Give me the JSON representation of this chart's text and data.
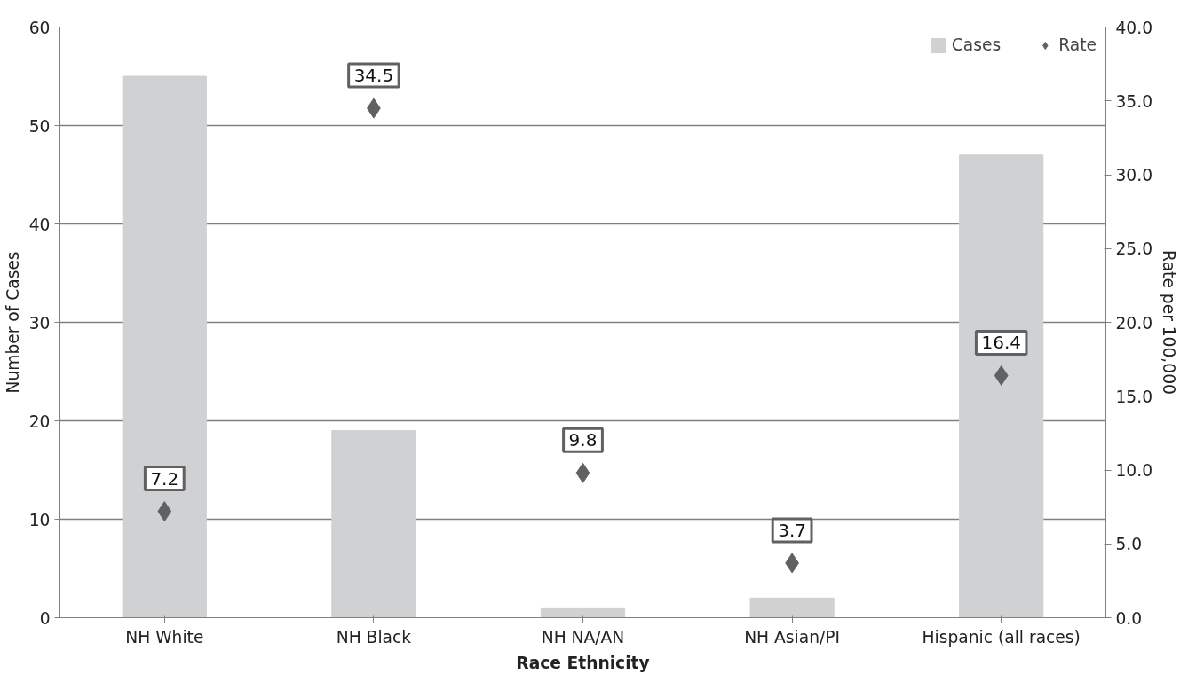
{
  "chart_data": {
    "type": "bar",
    "xlabel": "Race Ethnicity",
    "ylabel": "Number of Cases",
    "y2label": "Rate per 100,000",
    "categories": [
      "NH White",
      "NH Black",
      "NH NA/AN",
      "NH Asian/PI",
      "Hispanic (all races)"
    ],
    "series": [
      {
        "name": "Cases",
        "color": "#cfd1d3",
        "values": [
          55,
          19,
          1,
          2,
          47
        ]
      },
      {
        "name": "Rate",
        "type": "scatter",
        "axis": "y2",
        "color": "#5f6163",
        "marker": "diamond",
        "data_labels": true,
        "values": [
          7.2,
          34.5,
          9.8,
          3.7,
          16.4
        ]
      }
    ],
    "ylim": [
      0,
      60
    ],
    "yticks": [
      0,
      10,
      20,
      30,
      40,
      50,
      60
    ],
    "y2lim": [
      0,
      40
    ],
    "y2ticks": [
      {
        "value": 0,
        "label": "0.0"
      },
      {
        "value": 5,
        "label": "5.0"
      },
      {
        "value": 10,
        "label": "10.0"
      },
      {
        "value": 15,
        "label": "15.0"
      },
      {
        "value": 20,
        "label": "20.0"
      },
      {
        "value": 25,
        "label": "25.0"
      },
      {
        "value": 30,
        "label": "30.0"
      },
      {
        "value": 35,
        "label": "35.0"
      },
      {
        "value": 40,
        "label": "40.0"
      }
    ],
    "grid": "y",
    "legend": "top right"
  }
}
